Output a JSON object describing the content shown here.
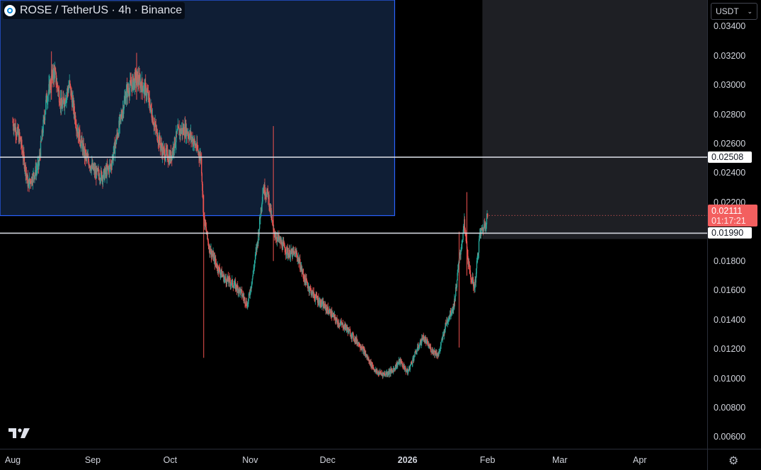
{
  "legend": {
    "symbol": "ROSE / TetherUS · 4h · Binance"
  },
  "currency": {
    "value": "USDT"
  },
  "price_axis": {
    "min": 0.0052,
    "max": 0.0358,
    "ticks": [
      "0.03400",
      "0.03200",
      "0.03000",
      "0.02800",
      "0.02600",
      "0.02400",
      "0.02200",
      "0.01800",
      "0.01600",
      "0.01400",
      "0.01200",
      "0.01000",
      "0.00800",
      "0.00600"
    ],
    "tick_values": [
      0.034,
      0.032,
      0.03,
      0.028,
      0.026,
      0.024,
      0.022,
      0.018,
      0.016,
      0.014,
      0.012,
      0.01,
      0.008,
      0.006
    ]
  },
  "time_axis": {
    "labels": [
      {
        "text": "Aug",
        "day": 0
      },
      {
        "text": "Sep",
        "day": 31
      },
      {
        "text": "Oct",
        "day": 61
      },
      {
        "text": "Nov",
        "day": 92
      },
      {
        "text": "Dec",
        "day": 122
      },
      {
        "text": "2026",
        "day": 153,
        "bold": true
      },
      {
        "text": "Feb",
        "day": 184
      },
      {
        "text": "Mar",
        "day": 212
      },
      {
        "text": "Apr",
        "day": 243
      }
    ]
  },
  "levels": {
    "upper": "0.02508",
    "lower": "0.01990",
    "last_price": "0.02111",
    "countdown": "01:17:21"
  },
  "zones": {
    "range_box": {
      "start_day": 0,
      "end_day": 148,
      "top": 0.0358,
      "bottom": 0.0211
    },
    "future_box": {
      "start_day": 182,
      "end_day": 280,
      "top": 0.0358,
      "bottom": 0.0195
    }
  },
  "colors": {
    "up": "#26a69a",
    "down": "#ef5350",
    "box_fill": "#0f1e35",
    "box_border": "#2962ff",
    "future_fill": "#1e1f24",
    "hline": "#d1d4dc",
    "last_price": "#f35f5f"
  },
  "chart_data": {
    "type": "candlestick",
    "timeframe": "4h",
    "anchors": [
      [
        0,
        0.0275
      ],
      [
        3,
        0.0262
      ],
      [
        6,
        0.0232
      ],
      [
        10,
        0.0245
      ],
      [
        13,
        0.029
      ],
      [
        16,
        0.031
      ],
      [
        19,
        0.0285
      ],
      [
        22,
        0.03
      ],
      [
        25,
        0.027
      ],
      [
        28,
        0.0252
      ],
      [
        32,
        0.024
      ],
      [
        35,
        0.0238
      ],
      [
        38,
        0.0245
      ],
      [
        41,
        0.027
      ],
      [
        44,
        0.0295
      ],
      [
        48,
        0.0305
      ],
      [
        52,
        0.0295
      ],
      [
        55,
        0.0272
      ],
      [
        58,
        0.0255
      ],
      [
        61,
        0.025
      ],
      [
        64,
        0.0268
      ],
      [
        67,
        0.027
      ],
      [
        70,
        0.0262
      ],
      [
        73,
        0.025
      ],
      [
        74,
        0.021
      ],
      [
        76,
        0.019
      ],
      [
        79,
        0.0177
      ],
      [
        82,
        0.0168
      ],
      [
        85,
        0.0165
      ],
      [
        88,
        0.016
      ],
      [
        91,
        0.015
      ],
      [
        93,
        0.017
      ],
      [
        95,
        0.0195
      ],
      [
        97,
        0.023
      ],
      [
        99,
        0.0225
      ],
      [
        101,
        0.02
      ],
      [
        104,
        0.0192
      ],
      [
        107,
        0.0185
      ],
      [
        110,
        0.0185
      ],
      [
        113,
        0.0168
      ],
      [
        116,
        0.0158
      ],
      [
        119,
        0.0152
      ],
      [
        123,
        0.0145
      ],
      [
        126,
        0.0138
      ],
      [
        129,
        0.0135
      ],
      [
        132,
        0.0128
      ],
      [
        135,
        0.0122
      ],
      [
        138,
        0.0112
      ],
      [
        141,
        0.0104
      ],
      [
        144,
        0.0103
      ],
      [
        147,
        0.0105
      ],
      [
        150,
        0.0112
      ],
      [
        153,
        0.0104
      ],
      [
        156,
        0.0117
      ],
      [
        159,
        0.0128
      ],
      [
        162,
        0.012
      ],
      [
        165,
        0.0116
      ],
      [
        168,
        0.0138
      ],
      [
        171,
        0.015
      ],
      [
        173,
        0.018
      ],
      [
        175,
        0.0205
      ],
      [
        177,
        0.0172
      ],
      [
        179,
        0.0162
      ],
      [
        181,
        0.0198
      ],
      [
        183,
        0.0205
      ],
      [
        184,
        0.0211
      ]
    ],
    "spikes": [
      {
        "day": 74,
        "low": 0.0114,
        "high": 0.0225
      },
      {
        "day": 101,
        "low": 0.018,
        "high": 0.0272
      },
      {
        "day": 176,
        "low": 0.017,
        "high": 0.0227
      },
      {
        "day": 173,
        "low": 0.0121,
        "high": 0.02
      },
      {
        "day": 15,
        "low": 0.029,
        "high": 0.0323
      },
      {
        "day": 48,
        "low": 0.029,
        "high": 0.0322
      }
    ]
  }
}
